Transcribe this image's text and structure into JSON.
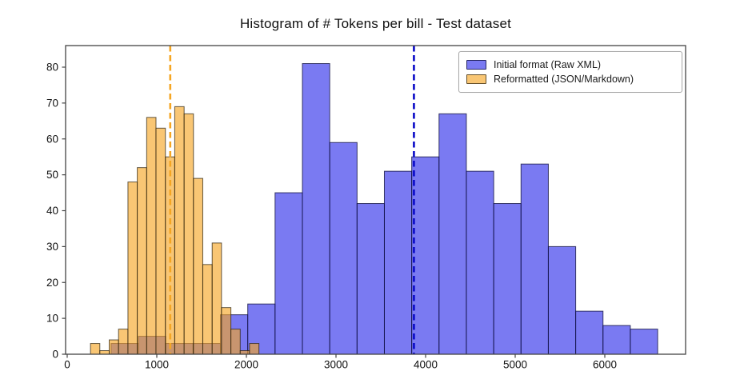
{
  "figure": {
    "title": "Histogram of # Tokens per bill - Test dataset"
  },
  "legend": {
    "position": "upper right",
    "items": [
      {
        "label": "Initial format (Raw XML)"
      },
      {
        "label": "Reformatted (JSON/Markdown)"
      }
    ]
  },
  "colors": {
    "blue_bar_fill": "rgba(50,50,235,0.65)",
    "blue_bar_edge": "rgba(15,15,60,0.78)",
    "orange_bar_fill": "rgba(245,165,35,0.63)",
    "orange_bar_edge": "rgba(40,30,12,0.72)",
    "blue_mean_line": "#0a0ac8",
    "orange_mean_line": "#f5a623",
    "axis_frame": "#444444",
    "tick_text": "#111111"
  },
  "chart_data": {
    "type": "bar",
    "subtype": "overlaid-histogram",
    "title": "Histogram of # Tokens per bill - Test dataset",
    "xlabel": "",
    "ylabel": "",
    "xlim": [
      -20,
      6900
    ],
    "ylim": [
      0,
      86
    ],
    "x_ticks": [
      0,
      1000,
      2000,
      3000,
      4000,
      5000,
      6000
    ],
    "y_ticks": [
      0,
      10,
      20,
      30,
      40,
      50,
      60,
      70,
      80
    ],
    "grid": false,
    "legend_position": "upper right",
    "series": [
      {
        "name": "Initial format (Raw XML)",
        "fill": "rgba(50,50,235,0.65)",
        "edge": "rgba(15,15,60,0.78)",
        "bin_edges": [
          490,
          795,
          1100,
          1405,
          1710,
          2015,
          2320,
          2625,
          2930,
          3235,
          3540,
          3845,
          4150,
          4455,
          4760,
          5065,
          5370,
          5675,
          5980,
          6285,
          6590
        ],
        "counts": [
          3,
          5,
          3,
          3,
          11,
          14,
          45,
          81,
          59,
          42,
          51,
          55,
          67,
          51,
          42,
          53,
          30,
          12,
          8,
          7
        ],
        "mean_x": 3870,
        "mean_line_color": "#0a0ac8",
        "mean_line_style": "dashed"
      },
      {
        "name": "Reformatted (JSON/Markdown)",
        "fill": "rgba(245,165,35,0.63)",
        "edge": "rgba(40,30,12,0.72)",
        "bin_edges": [
          260,
          364,
          469,
          573,
          678,
          782,
          887,
          991,
          1096,
          1200,
          1305,
          1409,
          1513,
          1618,
          1722,
          1827,
          1931,
          2035,
          2140
        ],
        "counts": [
          3,
          1,
          4,
          7,
          48,
          52,
          66,
          63,
          55,
          69,
          67,
          49,
          25,
          31,
          13,
          7,
          1,
          3
        ],
        "mean_x": 1150,
        "mean_line_color": "#f5a623",
        "mean_line_style": "dashed"
      }
    ]
  }
}
